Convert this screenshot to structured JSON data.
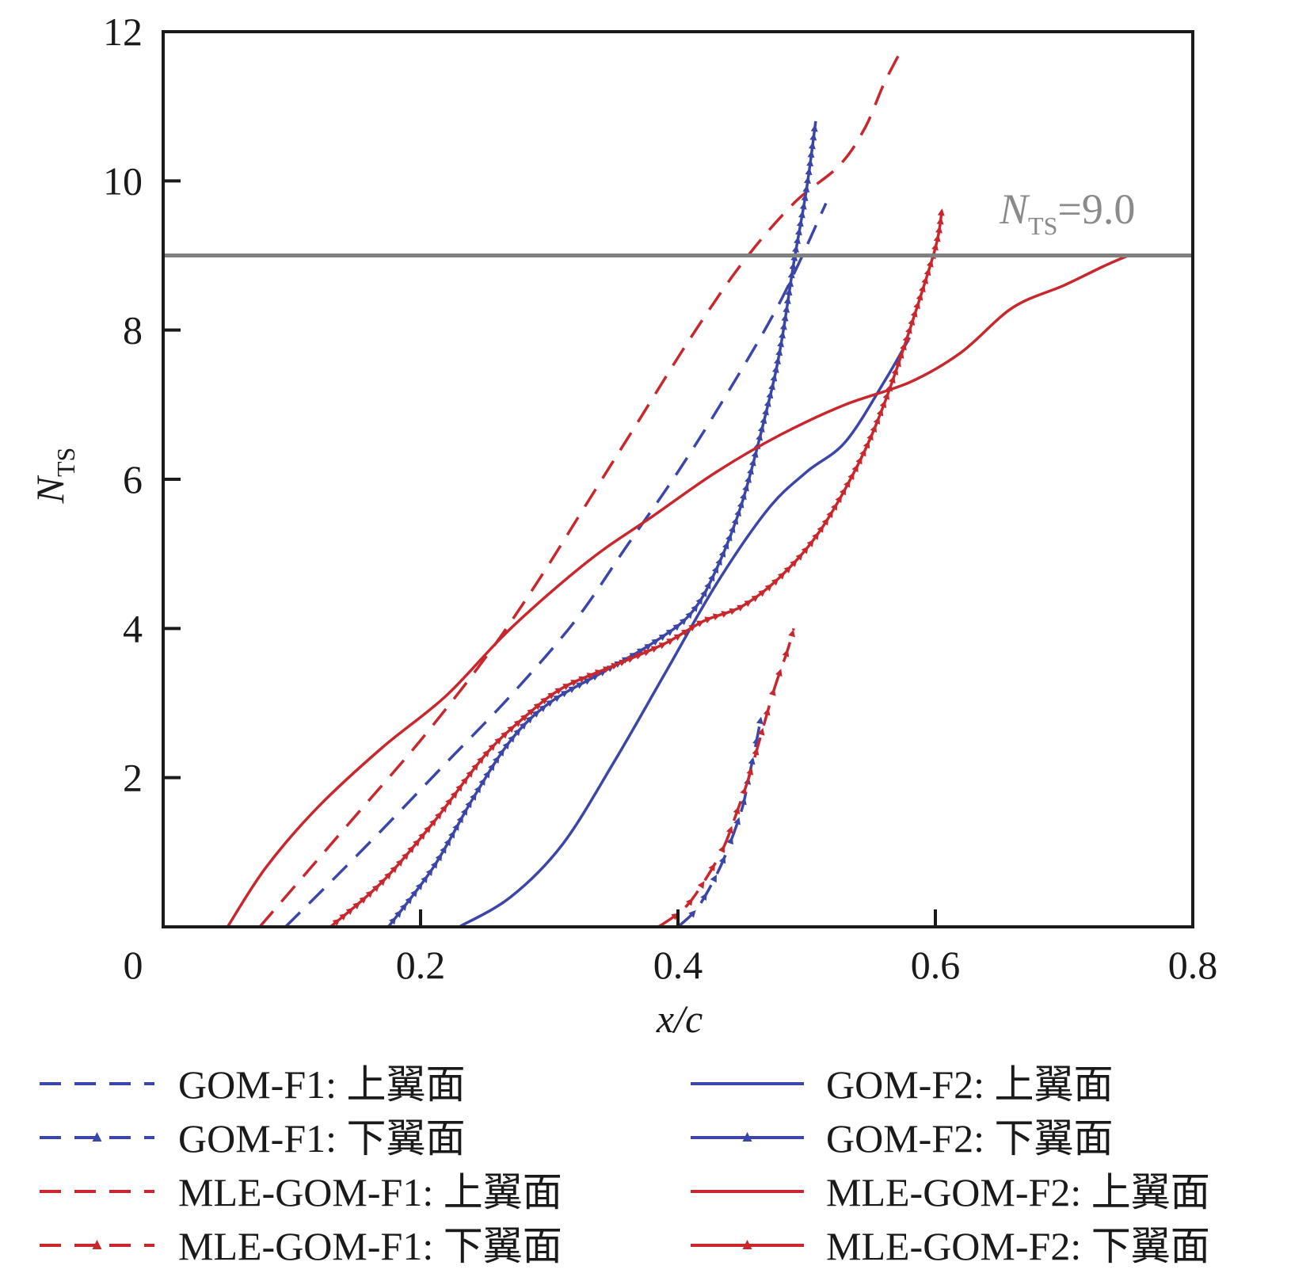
{
  "chart_data": {
    "type": "line",
    "xlabel": "x/c",
    "ylabel_main": "N",
    "ylabel_sub": "TS",
    "xlim": [
      0,
      0.8
    ],
    "ylim": [
      0,
      12
    ],
    "x_ticks": [
      0,
      0.2,
      0.4,
      0.6,
      0.8
    ],
    "x_tick_labels": [
      "0",
      "0.2",
      "0.4",
      "0.6",
      "0.8"
    ],
    "y_ticks": [
      2,
      4,
      6,
      8,
      10,
      12
    ],
    "y_tick_labels": [
      "2",
      "4",
      "6",
      "8",
      "10",
      "12"
    ],
    "threshold": {
      "value": 9.0,
      "label_main": "N",
      "label_sub": "TS",
      "label_value": "=9.0",
      "color": "#808080"
    },
    "series": [
      {
        "name": "GOM-F1: 上翼面",
        "color": "#3b46a8",
        "style": "dashed",
        "marker": false,
        "x": [
          0.095,
          0.13,
          0.17,
          0.22,
          0.27,
          0.32,
          0.36,
          0.4,
          0.44,
          0.48,
          0.515
        ],
        "y": [
          0.0,
          0.6,
          1.3,
          2.2,
          3.1,
          4.1,
          5.1,
          6.1,
          7.2,
          8.4,
          9.7
        ]
      },
      {
        "name": "GOM-F1: 下翼面",
        "color": "#3b46a8",
        "style": "dashed",
        "marker": true,
        "x": [
          0.4,
          0.415,
          0.43,
          0.44,
          0.45,
          0.455,
          0.46,
          0.465
        ],
        "y": [
          0.0,
          0.25,
          0.7,
          1.1,
          1.6,
          2.0,
          2.4,
          2.85
        ]
      },
      {
        "name": "MLE-GOM-F1: 上翼面",
        "color": "#c8282d",
        "style": "dashed",
        "marker": false,
        "x": [
          0.075,
          0.11,
          0.15,
          0.2,
          0.25,
          0.29,
          0.33,
          0.37,
          0.41,
          0.45,
          0.49,
          0.525,
          0.545,
          0.56,
          0.575
        ],
        "y": [
          0.0,
          0.7,
          1.5,
          2.5,
          3.6,
          4.6,
          5.7,
          6.8,
          7.9,
          8.9,
          9.7,
          10.2,
          10.7,
          11.3,
          11.8
        ]
      },
      {
        "name": "MLE-GOM-F1: 下翼面",
        "color": "#c8282d",
        "style": "dashed",
        "marker": true,
        "x": [
          0.385,
          0.405,
          0.42,
          0.435,
          0.445,
          0.455,
          0.465,
          0.475,
          0.485,
          0.49
        ],
        "y": [
          0.0,
          0.25,
          0.6,
          1.05,
          1.5,
          2.0,
          2.6,
          3.2,
          3.7,
          4.0
        ]
      },
      {
        "name": "GOM-F2: 上翼面",
        "color": "#3b46a8",
        "style": "solid",
        "marker": false,
        "x": [
          0.23,
          0.27,
          0.31,
          0.35,
          0.39,
          0.43,
          0.47,
          0.5,
          0.53,
          0.56,
          0.58
        ],
        "y": [
          0.0,
          0.4,
          1.1,
          2.2,
          3.4,
          4.6,
          5.6,
          6.1,
          6.5,
          7.3,
          7.9
        ]
      },
      {
        "name": "GOM-F2: 下翼面",
        "color": "#3b46a8",
        "style": "solid",
        "marker": true,
        "x": [
          0.175,
          0.21,
          0.24,
          0.27,
          0.3,
          0.34,
          0.38,
          0.41,
          0.43,
          0.45,
          0.47,
          0.48,
          0.49,
          0.5,
          0.507
        ],
        "y": [
          0.0,
          0.8,
          1.7,
          2.5,
          3.0,
          3.4,
          3.8,
          4.2,
          4.8,
          5.7,
          7.0,
          7.8,
          8.9,
          9.9,
          10.8
        ]
      },
      {
        "name": "MLE-GOM-F2: 上翼面",
        "color": "#c8282d",
        "style": "solid",
        "marker": false,
        "x": [
          0.05,
          0.08,
          0.12,
          0.17,
          0.22,
          0.27,
          0.33,
          0.38,
          0.43,
          0.48,
          0.53,
          0.58,
          0.62,
          0.66,
          0.7,
          0.73,
          0.75
        ],
        "y": [
          0.0,
          0.8,
          1.6,
          2.4,
          3.1,
          4.0,
          4.9,
          5.5,
          6.1,
          6.6,
          7.0,
          7.3,
          7.7,
          8.3,
          8.6,
          8.85,
          9.0
        ]
      },
      {
        "name": "MLE-GOM-F2: 下翼面",
        "color": "#c8282d",
        "style": "solid",
        "marker": true,
        "x": [
          0.13,
          0.17,
          0.21,
          0.25,
          0.28,
          0.31,
          0.35,
          0.39,
          0.42,
          0.45,
          0.48,
          0.51,
          0.54,
          0.56,
          0.58,
          0.6,
          0.605
        ],
        "y": [
          0.0,
          0.6,
          1.4,
          2.3,
          2.8,
          3.2,
          3.5,
          3.8,
          4.1,
          4.3,
          4.7,
          5.3,
          6.2,
          7.0,
          8.0,
          9.1,
          9.6
        ]
      }
    ]
  }
}
